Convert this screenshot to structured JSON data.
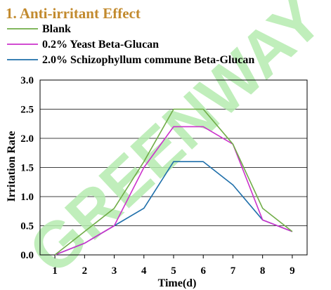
{
  "chart_data": {
    "type": "line",
    "title": "1. Anti-irritant Effect",
    "xlabel": "Time(d)",
    "ylabel": "Irritation Rate",
    "x": [
      1,
      2,
      3,
      4,
      5,
      6,
      7,
      8,
      9
    ],
    "xlim": [
      0.5,
      9.5
    ],
    "ylim": [
      0.0,
      3.0
    ],
    "yticks": [
      "0.0",
      "0.5",
      "1.0",
      "1.5",
      "2.0",
      "2.5",
      "3.0"
    ],
    "xticks": [
      "1",
      "2",
      "3",
      "4",
      "5",
      "6",
      "7",
      "8",
      "9"
    ],
    "grid": "horizontal",
    "legend_position": "top-left",
    "series": [
      {
        "name": "Blank",
        "color": "#70ad47",
        "values": [
          0.0,
          0.4,
          0.8,
          1.6,
          2.5,
          2.5,
          1.9,
          0.8,
          0.4
        ]
      },
      {
        "name": "0.2% Yeast Beta-Glucan",
        "color": "#cc33cc",
        "values": [
          0.0,
          0.2,
          0.5,
          1.5,
          2.2,
          2.2,
          1.9,
          0.6,
          0.4
        ]
      },
      {
        "name": "2.0% Schizophyllum commune Beta-Glucan",
        "color": "#1f6faa",
        "values": [
          0.0,
          0.2,
          0.5,
          0.8,
          1.6,
          1.6,
          1.2,
          0.6,
          0.4
        ]
      }
    ]
  },
  "watermark": "GREENWAY",
  "colors": {
    "title": "#c28a2e",
    "watermark": "#b6ecb0"
  }
}
